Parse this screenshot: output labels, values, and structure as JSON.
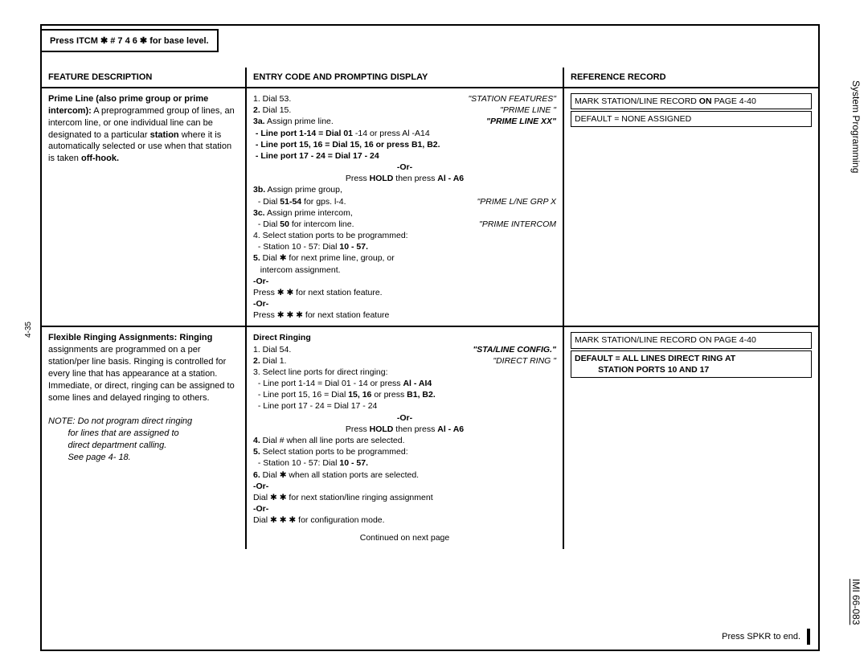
{
  "header": {
    "banner": "Press ITCM ✱ # 7 4 6 ✱ for base level.",
    "feature": "FEATURE  DESCRIPTION",
    "entry": "ENTRY CODE AND PROMPTING DISPLAY",
    "reference": "REFERENCE   RECORD"
  },
  "side": {
    "right_top": "System Programming",
    "right_bottom": "IMI 66-083",
    "left": "4-35"
  },
  "rows": [
    {
      "feature_html": "<span class='b'>Prime Line (also prime group or prime intercom):</span> A preprogrammed group of lines, an intercom line, or one individual line can be designated to a particular <span class='b'>station</span> where it is automatically selected or use when that station is taken <span class='b'>off-hook.</span>",
      "entry_lines": [
        {
          "t": "1. Dial 53.",
          "r": "\"STATION   FEATURES\""
        },
        {
          "t": "<span class='b'>2.</span> Dial 15.",
          "r": "\"PRIME   LINE   \""
        },
        {
          "t": "<span class='b'>3a.</span> Assign  prime  line.",
          "r": "<span class='b'>\"PRIME LINE XX\"</span>"
        },
        {
          "t": "<span class='b'>&nbsp;- Line port 1-14 = Dial 01</span>  -14 or press Al  -A14"
        },
        {
          "t": "<span class='b'>&nbsp;- Line port 15, 16 = Dial 15, 16 or press B1, B2.</span>"
        },
        {
          "t": "<span class='b'>&nbsp;- Line port 17 - 24 = Dial 17 - 24</span>"
        },
        {
          "t": "<span class='b' style='display:block;text-align:center'>-Or-</span>"
        },
        {
          "t": "<span style='display:block;text-align:center'>Press <span class='b'>HOLD</span>  then  press  <span class='b'>Al  -  A6</span></span>"
        },
        {
          "t": "<span class='b'>3b.</span> Assign  prime  group,"
        },
        {
          "t": "&nbsp;&nbsp;- Dial <span class='b'>51-54</span> for gps. l-4.",
          "r": "\"PRIME L/NE GRP X"
        },
        {
          "t": "<span class='b'>3c.</span> Assign  prime  intercom,"
        },
        {
          "t": "&nbsp;&nbsp;- Dial <span class='b'>50</span> for intercom line.",
          "r": "\"PRIME  INTERCOM"
        },
        {
          "t": "4. Select station ports to be programmed:"
        },
        {
          "t": "&nbsp;&nbsp;- Station 10 - 57: Dial <span class='b'>10 - 57.</span>"
        },
        {
          "t": "<span class='b'>5.</span> Dial ✱ for next prime line, group, or"
        },
        {
          "t": "&nbsp;&nbsp;&nbsp;intercom  assignment."
        },
        {
          "t": "<span class='b'>-Or-</span>"
        },
        {
          "t": "Press ✱ ✱  for  next  station  feature."
        },
        {
          "t": "<span class='b'>-Or-</span>"
        },
        {
          "t": "Press ✱ ✱ ✱  for  next  station  feature"
        }
      ],
      "ref_boxes": [
        "MARK  STATION/LINE  RECORD <span class='b'>ON</span> PAGE 4-40",
        "DEFAULT = NONE  ASSIGNED"
      ]
    },
    {
      "feature_html": "<span class='b'>Flexible  Ringing  Assignments: Ringing</span> assignments are programmed on a per station/per line basis. Ringing is controlled for every line that has appearance at a station. Immediate, or direct, ringing can be assigned to some lines and delayed ringing to others.<br><br><span class='i'>NOTE:  Do  not  program  direct  ringing<br>&nbsp;&nbsp;&nbsp;&nbsp;&nbsp;&nbsp;&nbsp;&nbsp;for  lines  that  are  assigned  to<br>&nbsp;&nbsp;&nbsp;&nbsp;&nbsp;&nbsp;&nbsp;&nbsp;direct  department  calling.<br>&nbsp;&nbsp;&nbsp;&nbsp;&nbsp;&nbsp;&nbsp;&nbsp;See page  4-  18.</span>",
      "entry_lines": [
        {
          "t": "<span class='b'>Direct  Ringing</span>"
        },
        {
          "t": "1. Dial 54.",
          "r": "<span class='b'>\"STA/LINE CONFIG.\"</span>"
        },
        {
          "t": "<span class='b'>2.</span> Dial 1.",
          "r": "\"DIRECT  RING \""
        },
        {
          "t": "3. Select line ports for direct ringing:"
        },
        {
          "t": "&nbsp;&nbsp;- Line port 1-14 = Dial 01 - 14 or press <span class='b'>Al - AI4</span>"
        },
        {
          "t": "&nbsp;&nbsp;- Line port 15, 16 = Dial <span class='b'>15, 16</span> or press <span class='b'>B1, B2.</span>"
        },
        {
          "t": "&nbsp;&nbsp;- Line port 17 - 24 = Dial 17 - 24"
        },
        {
          "t": "<span class='b' style='display:block;text-align:center'>-Or-</span>"
        },
        {
          "t": "<span style='display:block;text-align:center'>Press <span class='b'>HOLD</span>  then  press  <span class='b'>Al  -  A6</span></span>"
        },
        {
          "t": "<span class='b'>4.</span> Dial # when all line ports are selected."
        },
        {
          "t": "<span class='b'>5.</span> Select station ports to be programmed:"
        },
        {
          "t": "&nbsp;&nbsp;- Station 10 - 57: Dial <span class='b'>10 - 57.</span>"
        },
        {
          "t": "<span class='b'>6.</span> Dial ✱ when all station ports are selected."
        },
        {
          "t": "<span class='b'>-Or-</span>"
        },
        {
          "t": "Dial ✱ ✱ for next station/line ringing assignment"
        },
        {
          "t": "<span class='b'>-Or-</span>"
        },
        {
          "t": "Dial ✱ ✱ ✱ for configuration mode."
        }
      ],
      "ref_boxes": [
        "MARK  STATION/LINE  RECORD  ON  PAGE  4-40",
        "<span class='b'>DEFAULT = ALL  LINES  DIRECT  RING  AT<br>&nbsp;&nbsp;&nbsp;&nbsp;&nbsp;&nbsp;&nbsp;&nbsp;&nbsp;&nbsp;STATION  PORTS  10  AND  17</span>"
      ],
      "continued": "Continued  on  next  page"
    }
  ],
  "footer": {
    "spkr": "Press SPKR to end."
  }
}
